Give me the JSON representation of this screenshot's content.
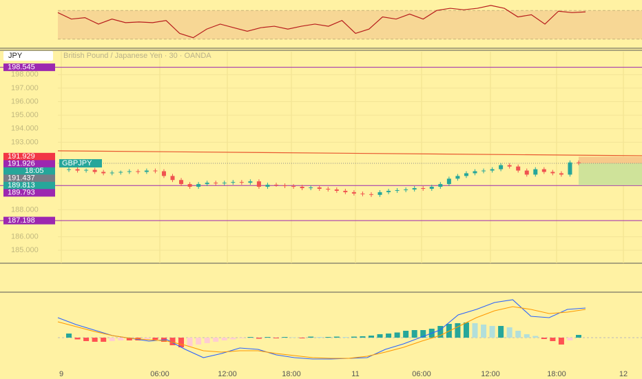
{
  "chart_data": [
    {
      "type": "line",
      "name": "rsi",
      "color": "#b71c1c",
      "band_color": "#f7d795",
      "ylim": [
        25,
        75
      ],
      "band": [
        30,
        70
      ],
      "values": [
        67,
        58,
        60,
        51,
        58,
        53,
        54,
        53,
        56,
        38,
        32,
        44,
        51,
        46,
        41,
        46,
        48,
        44,
        48,
        51,
        48,
        56,
        38,
        44,
        61,
        58,
        65,
        58,
        70,
        73,
        71,
        73,
        77,
        73,
        61,
        64,
        51,
        69,
        67,
        68
      ]
    },
    {
      "type": "candlestick",
      "symbol_box": "JPY",
      "title": "British Pound / Japanese Yen · 30 · OANDA",
      "symbol_tag": "GBPJPY",
      "ylim": [
        184.04,
        199.7
      ],
      "yticks": [
        185,
        186,
        188,
        193,
        194,
        195,
        196,
        197,
        {
          "value": 185,
          "label": "185.000"
        },
        {
          "value": 186,
          "label": "186.000"
        },
        {
          "value": 188,
          "label": "188.000"
        },
        {
          "value": 193,
          "label": "193.000"
        },
        {
          "value": 194,
          "label": "194.000"
        },
        {
          "value": 195,
          "label": "195.000"
        },
        {
          "value": 196,
          "label": "196.000"
        },
        {
          "value": 197,
          "label": "197.000"
        },
        {
          "value": 198,
          "label": "198.000"
        }
      ],
      "up_color": "#26a69a",
      "down_color": "#ef5350",
      "open": [
        190.95,
        191.0,
        190.9,
        190.95,
        190.8,
        190.7,
        190.75,
        190.8,
        190.85,
        190.8,
        190.9,
        190.85,
        190.5,
        190.2,
        189.9,
        189.7,
        189.9,
        190.0,
        189.95,
        190.0,
        190.05,
        190.0,
        190.1,
        189.7,
        189.85,
        189.8,
        189.75,
        189.7,
        189.6,
        189.65,
        189.55,
        189.5,
        189.4,
        189.3,
        189.2,
        189.15,
        189.1,
        189.3,
        189.4,
        189.45,
        189.5,
        189.6,
        189.55,
        189.7,
        189.9,
        190.3,
        190.5,
        190.7,
        190.85,
        190.9,
        191.0,
        191.3,
        191.2,
        190.9,
        190.6,
        191.0,
        190.8,
        190.7,
        190.6,
        191.5
      ],
      "high": [
        191.15,
        191.15,
        191.05,
        191.1,
        190.95,
        190.9,
        190.9,
        191.0,
        191.0,
        191.05,
        191.05,
        191.0,
        190.65,
        190.35,
        190.05,
        190.05,
        190.15,
        190.15,
        190.15,
        190.2,
        190.2,
        190.25,
        190.25,
        190.0,
        190.0,
        189.95,
        189.9,
        189.85,
        189.8,
        189.8,
        189.7,
        189.65,
        189.55,
        189.45,
        189.35,
        189.3,
        189.45,
        189.55,
        189.6,
        189.65,
        189.75,
        189.75,
        189.85,
        190.05,
        190.45,
        190.65,
        190.85,
        191.0,
        191.05,
        191.15,
        191.45,
        191.45,
        191.35,
        191.05,
        191.15,
        191.15,
        190.95,
        190.85,
        191.65,
        191.65
      ],
      "low": [
        190.8,
        190.75,
        190.75,
        190.65,
        190.55,
        190.55,
        190.6,
        190.65,
        190.65,
        190.65,
        190.7,
        190.35,
        190.05,
        189.75,
        189.55,
        189.55,
        189.75,
        189.8,
        189.8,
        189.85,
        189.85,
        189.85,
        189.55,
        189.55,
        189.7,
        189.6,
        189.55,
        189.45,
        189.45,
        189.4,
        189.35,
        189.25,
        189.15,
        189.05,
        189.0,
        188.95,
        188.95,
        189.15,
        189.25,
        189.3,
        189.35,
        189.4,
        189.4,
        189.55,
        189.75,
        190.15,
        190.35,
        190.55,
        190.7,
        190.75,
        190.85,
        191.05,
        190.75,
        190.45,
        190.45,
        190.65,
        190.55,
        190.45,
        190.45,
        191.3
      ],
      "close": [
        191.0,
        190.9,
        190.95,
        190.8,
        190.7,
        190.75,
        190.8,
        190.85,
        190.8,
        190.9,
        190.85,
        190.5,
        190.2,
        189.9,
        189.7,
        189.9,
        190.0,
        189.95,
        190.0,
        190.05,
        190.0,
        190.1,
        189.7,
        189.85,
        189.8,
        189.75,
        189.7,
        189.6,
        189.65,
        189.55,
        189.5,
        189.4,
        189.3,
        189.2,
        189.15,
        189.1,
        189.3,
        189.4,
        189.45,
        189.5,
        189.6,
        189.55,
        189.7,
        189.9,
        190.3,
        190.5,
        190.7,
        190.85,
        190.9,
        191.0,
        191.3,
        191.2,
        190.9,
        190.6,
        191.0,
        190.8,
        190.7,
        190.6,
        191.5,
        191.45
      ],
      "levels": [
        {
          "value": 198.545,
          "color": "#9c27b0"
        },
        {
          "value": 189.793,
          "color": "#9c27b0"
        },
        {
          "value": 187.198,
          "color": "#9c27b0"
        }
      ],
      "trendline": {
        "from": 192.36,
        "to": 192.0,
        "color": "#e8572f"
      },
      "last_price": 191.437,
      "tags": [
        {
          "value": 198.545,
          "color": "#9c27b0"
        },
        {
          "value": 191.929,
          "color": "#f23645"
        },
        {
          "value": 191.926,
          "color": "#9c27b0"
        },
        {
          "text": "18:05",
          "color": "#26a69a"
        },
        {
          "value": 191.437,
          "color": "#787b86"
        },
        {
          "value": 189.813,
          "color": "#26a69a"
        },
        {
          "value": 189.793,
          "color": "#9c27b0"
        },
        {
          "value": 187.198,
          "color": "#9c27b0"
        }
      ],
      "stop_color": "#f7c98a",
      "target_color": "#cfe39a",
      "xticks": [
        "9",
        "06:00",
        "12:00",
        "18:00",
        "11",
        "06:00",
        "12:00",
        "18:00",
        "12"
      ]
    },
    {
      "type": "macd",
      "ylim": [
        -1.0,
        1.3
      ],
      "macd_color": "#2962ff",
      "signal_color": "#ff9800",
      "hist_colors": {
        "up_grow": "#26a69a",
        "up_fall": "#b2dfdb",
        "down_grow": "#ff5252",
        "down_fall": "#ffcdd2"
      },
      "macd": [
        0.58,
        0.38,
        0.22,
        0.06,
        -0.02,
        -0.1,
        -0.06,
        -0.34,
        -0.58,
        -0.46,
        -0.3,
        -0.34,
        -0.5,
        -0.58,
        -0.62,
        -0.62,
        -0.6,
        -0.58,
        -0.34,
        -0.18,
        0.02,
        0.22,
        0.66,
        0.82,
        1.02,
        1.1,
        0.62,
        0.58,
        0.82,
        0.86
      ],
      "signal": [
        0.46,
        0.32,
        0.18,
        0.06,
        -0.02,
        -0.06,
        -0.1,
        -0.22,
        -0.38,
        -0.42,
        -0.38,
        -0.38,
        -0.46,
        -0.52,
        -0.58,
        -0.6,
        -0.6,
        -0.54,
        -0.42,
        -0.28,
        -0.1,
        0.06,
        0.32,
        0.58,
        0.78,
        0.9,
        0.82,
        0.7,
        0.74,
        0.82
      ],
      "histogram": [
        0.12,
        -0.05,
        -0.1,
        -0.12,
        -0.12,
        -0.1,
        -0.08,
        -0.08,
        -0.08,
        -0.06,
        -0.06,
        -0.12,
        -0.22,
        -0.28,
        -0.25,
        -0.2,
        -0.16,
        -0.12,
        -0.08,
        -0.05,
        -0.02,
        0.02,
        -0.03,
        0.02,
        -0.02,
        0.02,
        0.01,
        -0.02,
        0.03,
        0.02,
        0.02,
        0.03,
        0.02,
        0.03,
        0.04,
        0.06,
        0.1,
        0.12,
        0.15,
        0.2,
        0.22,
        0.22,
        0.26,
        0.34,
        0.4,
        0.42,
        0.44,
        0.42,
        0.38,
        0.34,
        0.34,
        0.3,
        0.2,
        0.1,
        0.05,
        -0.04,
        -0.1,
        -0.2,
        -0.08,
        0.08
      ]
    }
  ]
}
